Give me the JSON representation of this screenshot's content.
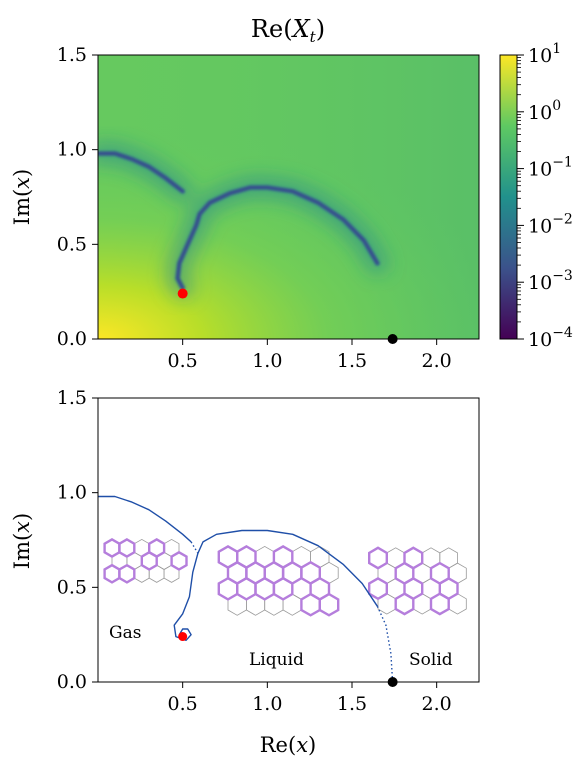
{
  "chart_data": [
    {
      "type": "heatmap",
      "title": "Re(X_t)",
      "xlabel": "",
      "ylabel": "Im(x)",
      "xlim": [
        0.0,
        2.25
      ],
      "ylim": [
        0.0,
        1.5
      ],
      "xticks": [
        "0.5",
        "1.0",
        "1.5",
        "2.0"
      ],
      "xtick_values": [
        0.5,
        1.0,
        1.5,
        2.0
      ],
      "yticks": [
        "0.0",
        "0.5",
        "1.0",
        "1.5"
      ],
      "ytick_values": [
        0.0,
        0.5,
        1.0,
        1.5
      ],
      "colorbar": {
        "scale": "log",
        "range": [
          0.0001,
          10
        ],
        "ticks": [
          "10^1",
          "10^0",
          "10^-1",
          "10^-2",
          "10^-3",
          "10^-4"
        ],
        "tick_values": [
          10,
          1,
          0.1,
          0.01,
          0.001,
          0.0001
        ],
        "colormap": [
          "#440154",
          "#3b528b",
          "#21918c",
          "#5ec962",
          "#fde725"
        ]
      },
      "zero_curves": [
        [
          [
            0.0,
            0.98
          ],
          [
            0.1,
            0.98
          ],
          [
            0.2,
            0.95
          ],
          [
            0.3,
            0.91
          ],
          [
            0.4,
            0.85
          ],
          [
            0.5,
            0.78
          ]
        ],
        [
          [
            0.5,
            0.27
          ],
          [
            0.47,
            0.32
          ],
          [
            0.48,
            0.4
          ],
          [
            0.53,
            0.5
          ],
          [
            0.58,
            0.6
          ],
          [
            0.6,
            0.66
          ],
          [
            0.66,
            0.72
          ],
          [
            0.78,
            0.77
          ],
          [
            0.9,
            0.8
          ],
          [
            1.0,
            0.8
          ],
          [
            1.15,
            0.78
          ],
          [
            1.3,
            0.72
          ],
          [
            1.45,
            0.63
          ],
          [
            1.57,
            0.52
          ],
          [
            1.65,
            0.4
          ]
        ]
      ],
      "points": [
        {
          "x": 0.5,
          "y": 0.24,
          "color": "#ff0000"
        },
        {
          "x": 1.74,
          "y": 0.0,
          "color": "#000000"
        }
      ]
    },
    {
      "type": "line",
      "title": "",
      "xlabel": "Re(x)",
      "ylabel": "Im(x)",
      "xlim": [
        0.0,
        2.25
      ],
      "ylim": [
        0.0,
        1.5
      ],
      "xticks": [
        "0.5",
        "1.0",
        "1.5",
        "2.0"
      ],
      "xtick_values": [
        0.5,
        1.0,
        1.5,
        2.0
      ],
      "yticks": [
        "0.0",
        "0.5",
        "1.0",
        "1.5"
      ],
      "ytick_values": [
        0.0,
        0.5,
        1.0,
        1.5
      ],
      "line_color": "#1f4fa8",
      "solid_curves": [
        [
          [
            0.0,
            0.98
          ],
          [
            0.1,
            0.98
          ],
          [
            0.2,
            0.95
          ],
          [
            0.3,
            0.91
          ],
          [
            0.4,
            0.85
          ],
          [
            0.5,
            0.78
          ],
          [
            0.55,
            0.74
          ]
        ],
        [
          [
            0.59,
            0.68
          ],
          [
            0.62,
            0.74
          ],
          [
            0.7,
            0.78
          ],
          [
            0.85,
            0.8
          ],
          [
            1.0,
            0.8
          ],
          [
            1.15,
            0.78
          ],
          [
            1.3,
            0.72
          ],
          [
            1.45,
            0.62
          ],
          [
            1.56,
            0.52
          ],
          [
            1.65,
            0.4
          ]
        ],
        [
          [
            0.59,
            0.68
          ],
          [
            0.56,
            0.58
          ],
          [
            0.54,
            0.45
          ],
          [
            0.5,
            0.36
          ],
          [
            0.45,
            0.3
          ],
          [
            0.46,
            0.24
          ],
          [
            0.52,
            0.22
          ],
          [
            0.55,
            0.25
          ],
          [
            0.53,
            0.28
          ],
          [
            0.5,
            0.28
          ],
          [
            0.48,
            0.25
          ]
        ]
      ],
      "dotted_curves": [
        [
          [
            0.55,
            0.74
          ],
          [
            0.59,
            0.68
          ]
        ],
        [
          [
            1.65,
            0.4
          ],
          [
            1.7,
            0.3
          ],
          [
            1.73,
            0.15
          ],
          [
            1.74,
            0.0
          ]
        ]
      ],
      "points": [
        {
          "x": 0.5,
          "y": 0.24,
          "color": "#ff0000"
        },
        {
          "x": 1.74,
          "y": 0.0,
          "color": "#000000"
        }
      ],
      "annotations": [
        "Gas",
        "Liquid",
        "Solid"
      ],
      "hexagon_insets": [
        {
          "name": "gas",
          "cols": 5,
          "rows": 3,
          "highlight": [
            [
              0,
              0
            ],
            [
              0,
              2
            ],
            [
              1,
              0
            ],
            [
              1,
              2
            ],
            [
              2,
              1
            ],
            [
              3,
              0
            ],
            [
              4,
              1
            ],
            [
              2,
              3
            ]
          ]
        },
        {
          "name": "liquid",
          "cols": 6,
          "rows": 4,
          "highlight": [
            [
              0,
              0
            ],
            [
              0,
              1
            ],
            [
              1,
              0
            ],
            [
              1,
              1
            ],
            [
              1,
              2
            ],
            [
              2,
              1
            ],
            [
              2,
              2
            ],
            [
              3,
              1
            ],
            [
              3,
              2
            ],
            [
              4,
              1
            ],
            [
              5,
              2
            ],
            [
              5,
              3
            ],
            [
              4,
              3
            ],
            [
              0,
              2
            ],
            [
              3,
              0
            ]
          ]
        },
        {
          "name": "solid",
          "cols": 5,
          "rows": 4,
          "highlight": [
            [
              0,
              0
            ],
            [
              0,
              2
            ],
            [
              1,
              1
            ],
            [
              2,
              2
            ],
            [
              2,
              0
            ],
            [
              3,
              1
            ],
            [
              4,
              2
            ],
            [
              1,
              3
            ],
            [
              3,
              3
            ]
          ]
        }
      ]
    }
  ],
  "top": {
    "title": "Re(X_t)",
    "ylabel": "Im(x)"
  },
  "bottom": {
    "xlabel": "Re(x)",
    "ylabel": "Im(x)",
    "label_gas": "Gas",
    "label_liquid": "Liquid",
    "label_solid": "Solid"
  }
}
